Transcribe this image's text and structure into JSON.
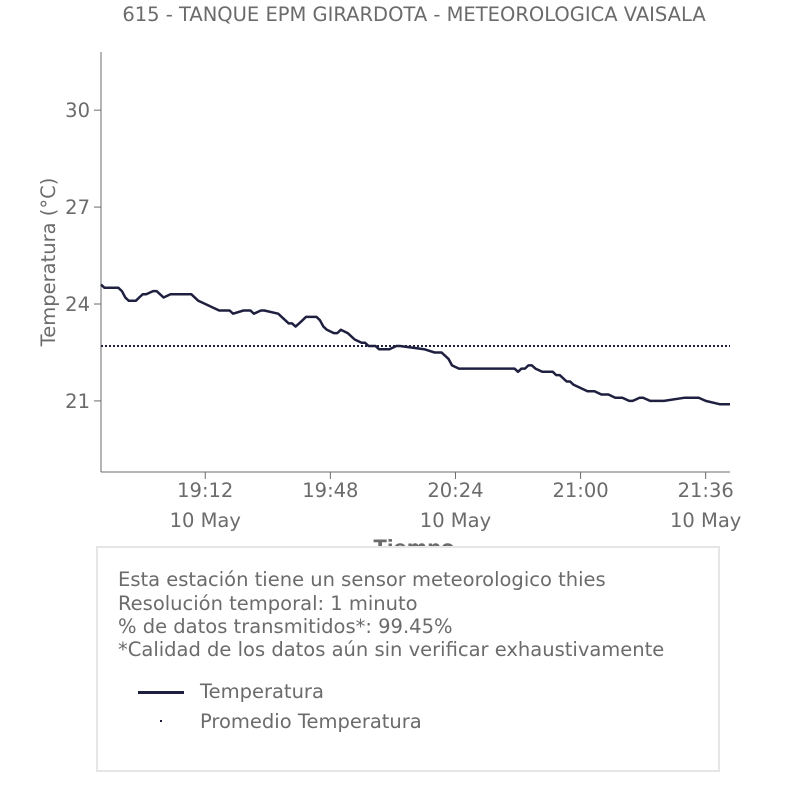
{
  "colors": {
    "text": "#6b6b6b",
    "axis": "#6b6b6b",
    "series_line": "#1f2040",
    "frame": "#e6e6e6"
  },
  "chart_data": {
    "type": "line",
    "title": "615 - TANQUE EPM GIRARDOTA - METEOROLOGICA VAISALA",
    "xlabel": "Tiempo",
    "ylabel": "Temperatura (°C)",
    "x_ticks": [
      {
        "time": "19:12",
        "date": "10 May",
        "t": 72
      },
      {
        "time": "19:48",
        "date": "",
        "t": 108
      },
      {
        "time": "20:24",
        "date": "10 May",
        "t": 144
      },
      {
        "time": "21:00",
        "date": "",
        "t": 180
      },
      {
        "time": "21:36",
        "date": "10 May",
        "t": 216
      }
    ],
    "x_unit": "minutes after 18:00 on 10 May",
    "xlim": [
      42,
      223
    ],
    "yticks": [
      21,
      24,
      27,
      30
    ],
    "ylim": [
      18.8,
      31.8
    ],
    "grid": false,
    "legend_position": "bottom (inside info box)",
    "series": [
      {
        "name": "Temperatura",
        "style": "solid",
        "x": [
          42,
          43,
          47,
          48,
          49,
          50,
          52,
          53,
          54,
          55,
          57,
          58,
          59,
          60,
          62,
          68,
          70,
          72,
          74,
          76,
          79,
          80,
          83,
          84,
          85,
          86,
          88,
          89,
          93,
          94,
          95,
          96,
          97,
          98,
          99,
          100,
          101,
          104,
          105,
          106,
          107,
          109,
          110,
          111,
          113,
          114,
          115,
          117,
          118,
          119,
          121,
          122,
          125,
          127,
          128,
          135,
          138,
          140,
          142,
          143,
          145,
          146,
          147,
          148,
          149,
          150,
          151,
          154,
          161,
          162,
          163,
          164,
          165,
          166,
          167,
          169,
          172,
          173,
          174,
          175,
          176,
          177,
          178,
          180,
          182,
          184,
          186,
          188,
          190,
          192,
          194,
          195,
          197,
          198,
          200,
          204,
          210,
          214,
          216,
          220,
          223
        ],
        "y": [
          24.6,
          24.5,
          24.5,
          24.4,
          24.2,
          24.1,
          24.1,
          24.2,
          24.3,
          24.3,
          24.4,
          24.4,
          24.3,
          24.2,
          24.3,
          24.3,
          24.1,
          24.0,
          23.9,
          23.8,
          23.8,
          23.7,
          23.8,
          23.8,
          23.8,
          23.7,
          23.8,
          23.8,
          23.7,
          23.6,
          23.5,
          23.4,
          23.4,
          23.3,
          23.4,
          23.5,
          23.6,
          23.6,
          23.5,
          23.3,
          23.2,
          23.1,
          23.1,
          23.2,
          23.1,
          23.0,
          22.9,
          22.8,
          22.8,
          22.7,
          22.7,
          22.6,
          22.6,
          22.7,
          22.7,
          22.6,
          22.5,
          22.5,
          22.3,
          22.1,
          22.0,
          22.0,
          22.0,
          22.0,
          22.0,
          22.0,
          22.0,
          22.0,
          22.0,
          21.9,
          22.0,
          22.0,
          22.1,
          22.1,
          22.0,
          21.9,
          21.9,
          21.8,
          21.8,
          21.7,
          21.6,
          21.6,
          21.5,
          21.4,
          21.3,
          21.3,
          21.2,
          21.2,
          21.1,
          21.1,
          21.0,
          21.0,
          21.1,
          21.1,
          21.0,
          21.0,
          21.1,
          21.1,
          21.0,
          20.9,
          20.9
        ]
      },
      {
        "name": "Promedio Temperatura",
        "style": "dotted",
        "x": [
          42,
          223
        ],
        "y": [
          22.7,
          22.7
        ]
      }
    ]
  },
  "info_box": {
    "lines": [
      "Esta estación tiene un sensor meteorologico thies",
      "Resolución temporal: 1 minuto",
      "% de datos transmitidos*: 99.45%",
      "*Calidad de los datos aún sin verificar exhaustivamente"
    ],
    "legend": [
      {
        "label": "Temperatura",
        "style": "line"
      },
      {
        "label": "Promedio Temperatura",
        "style": "dot"
      }
    ]
  }
}
